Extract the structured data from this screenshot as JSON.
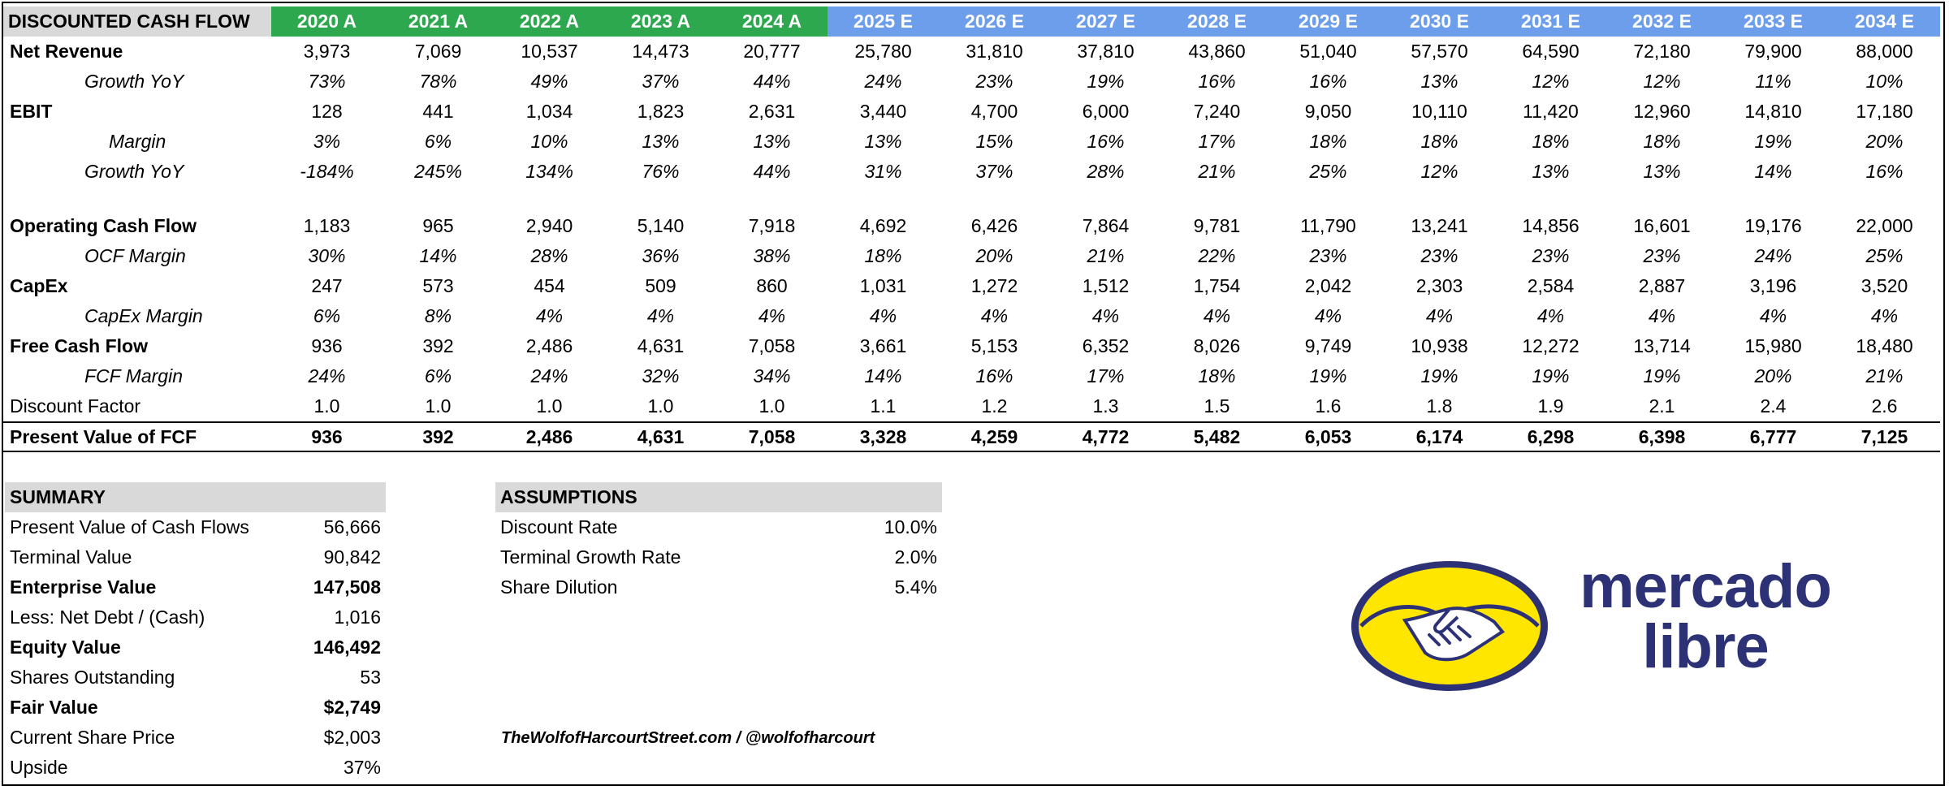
{
  "table": {
    "title": "DISCOUNTED CASH FLOW",
    "years": [
      {
        "label": "2020 A",
        "kind": "actual"
      },
      {
        "label": "2021 A",
        "kind": "actual"
      },
      {
        "label": "2022 A",
        "kind": "actual"
      },
      {
        "label": "2023 A",
        "kind": "actual"
      },
      {
        "label": "2024 A",
        "kind": "actual"
      },
      {
        "label": "2025 E",
        "kind": "est"
      },
      {
        "label": "2026 E",
        "kind": "est"
      },
      {
        "label": "2027 E",
        "kind": "est"
      },
      {
        "label": "2028 E",
        "kind": "est"
      },
      {
        "label": "2029 E",
        "kind": "est"
      },
      {
        "label": "2030 E",
        "kind": "est"
      },
      {
        "label": "2031 E",
        "kind": "est"
      },
      {
        "label": "2032 E",
        "kind": "est"
      },
      {
        "label": "2033 E",
        "kind": "est"
      },
      {
        "label": "2034 E",
        "kind": "est"
      }
    ],
    "rows": [
      {
        "label": "Net Revenue",
        "style": "bold",
        "values": [
          "3,973",
          "7,069",
          "10,537",
          "14,473",
          "20,777",
          "25,780",
          "31,810",
          "37,810",
          "43,860",
          "51,040",
          "57,570",
          "64,590",
          "72,180",
          "79,900",
          "88,000"
        ]
      },
      {
        "label": "Growth YoY",
        "style": "sub",
        "values": [
          "73%",
          "78%",
          "49%",
          "37%",
          "44%",
          "24%",
          "23%",
          "19%",
          "16%",
          "16%",
          "13%",
          "12%",
          "12%",
          "11%",
          "10%"
        ]
      },
      {
        "label": "EBIT",
        "style": "bold",
        "values": [
          "128",
          "441",
          "1,034",
          "1,823",
          "2,631",
          "3,440",
          "4,700",
          "6,000",
          "7,240",
          "9,050",
          "10,110",
          "11,420",
          "12,960",
          "14,810",
          "17,180"
        ]
      },
      {
        "label": "Margin",
        "style": "sub2",
        "values": [
          "3%",
          "6%",
          "10%",
          "13%",
          "13%",
          "13%",
          "15%",
          "16%",
          "17%",
          "18%",
          "18%",
          "18%",
          "18%",
          "19%",
          "20%"
        ]
      },
      {
        "label": "Growth YoY",
        "style": "sub",
        "values": [
          "-184%",
          "245%",
          "134%",
          "76%",
          "44%",
          "31%",
          "37%",
          "28%",
          "21%",
          "25%",
          "12%",
          "13%",
          "13%",
          "14%",
          "16%"
        ]
      },
      {
        "label": "",
        "style": "spacer",
        "values": []
      },
      {
        "label": "Operating Cash Flow",
        "style": "bold",
        "values": [
          "1,183",
          "965",
          "2,940",
          "5,140",
          "7,918",
          "4,692",
          "6,426",
          "7,864",
          "9,781",
          "11,790",
          "13,241",
          "14,856",
          "16,601",
          "19,176",
          "22,000"
        ]
      },
      {
        "label": "OCF Margin",
        "style": "sub",
        "values": [
          "30%",
          "14%",
          "28%",
          "36%",
          "38%",
          "18%",
          "20%",
          "21%",
          "22%",
          "23%",
          "23%",
          "23%",
          "23%",
          "24%",
          "25%"
        ]
      },
      {
        "label": "CapEx",
        "style": "bold",
        "values": [
          "247",
          "573",
          "454",
          "509",
          "860",
          "1,031",
          "1,272",
          "1,512",
          "1,754",
          "2,042",
          "2,303",
          "2,584",
          "2,887",
          "3,196",
          "3,520"
        ]
      },
      {
        "label": "CapEx Margin",
        "style": "sub",
        "values": [
          "6%",
          "8%",
          "4%",
          "4%",
          "4%",
          "4%",
          "4%",
          "4%",
          "4%",
          "4%",
          "4%",
          "4%",
          "4%",
          "4%",
          "4%"
        ]
      },
      {
        "label": "Free Cash Flow",
        "style": "bold",
        "values": [
          "936",
          "392",
          "2,486",
          "4,631",
          "7,058",
          "3,661",
          "5,153",
          "6,352",
          "8,026",
          "9,749",
          "10,938",
          "12,272",
          "13,714",
          "15,980",
          "18,480"
        ]
      },
      {
        "label": "FCF Margin",
        "style": "sub",
        "values": [
          "24%",
          "6%",
          "24%",
          "32%",
          "34%",
          "14%",
          "16%",
          "17%",
          "18%",
          "19%",
          "19%",
          "19%",
          "19%",
          "20%",
          "21%"
        ]
      },
      {
        "label": "Discount Factor",
        "style": "plain",
        "values": [
          "1.0",
          "1.0",
          "1.0",
          "1.0",
          "1.0",
          "1.1",
          "1.2",
          "1.3",
          "1.5",
          "1.6",
          "1.8",
          "1.9",
          "2.1",
          "2.4",
          "2.6"
        ]
      },
      {
        "label": "Present Value of FCF",
        "style": "pv",
        "values": [
          "936",
          "392",
          "2,486",
          "4,631",
          "7,058",
          "3,328",
          "4,259",
          "4,772",
          "5,482",
          "6,053",
          "6,174",
          "6,298",
          "6,398",
          "6,777",
          "7,125"
        ]
      }
    ]
  },
  "summary": {
    "title": "SUMMARY",
    "rows": [
      {
        "label": "Present Value of Cash Flows",
        "value": "56,666",
        "bold": false
      },
      {
        "label": "Terminal Value",
        "value": "90,842",
        "bold": false
      },
      {
        "label": "Enterprise Value",
        "value": "147,508",
        "bold": true
      },
      {
        "label": "Less: Net Debt / (Cash)",
        "value": "1,016",
        "bold": false
      },
      {
        "label": "Equity Value",
        "value": "146,492",
        "bold": true
      },
      {
        "label": "Shares Outstanding",
        "value": "53",
        "bold": false
      },
      {
        "label": "Fair Value",
        "value": "$2,749",
        "bold": true
      },
      {
        "label": "Current Share Price",
        "value": "$2,003",
        "bold": false
      },
      {
        "label": "Upside",
        "value": "37%",
        "bold": false
      }
    ]
  },
  "assumptions": {
    "title": "ASSUMPTIONS",
    "rows": [
      {
        "label": "Discount Rate",
        "value": "10.0%"
      },
      {
        "label": "Terminal Growth Rate",
        "value": "2.0%"
      },
      {
        "label": "Share Dilution",
        "value": "5.4%"
      }
    ]
  },
  "credit": "TheWolfofHarcourtStreet.com / @wolfofharcourt",
  "logo": {
    "line1": "mercado",
    "line2": "libre",
    "colors": {
      "text": "#2d3277",
      "yellow": "#ffe600",
      "outline": "#2d3277"
    }
  },
  "colors": {
    "actual_header": "#2ea84f",
    "estimate_header": "#6d9eeb",
    "section_header": "#d9d9d9"
  }
}
